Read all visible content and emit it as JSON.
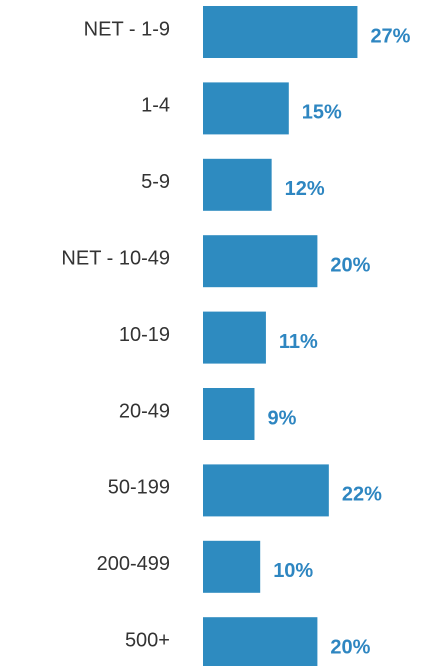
{
  "chart_data": {
    "type": "bar",
    "orientation": "horizontal",
    "categories": [
      "NET - 1-9",
      "1-4",
      "5-9",
      "NET - 10-49",
      "10-19",
      "20-49",
      "50-199",
      "200-499",
      "500+"
    ],
    "values": [
      27,
      15,
      12,
      20,
      11,
      9,
      22,
      10,
      20
    ],
    "value_labels": [
      "27%",
      "15%",
      "12%",
      "20%",
      "11%",
      "9%",
      "22%",
      "10%",
      "20%"
    ],
    "color": "#2e8bc0"
  }
}
